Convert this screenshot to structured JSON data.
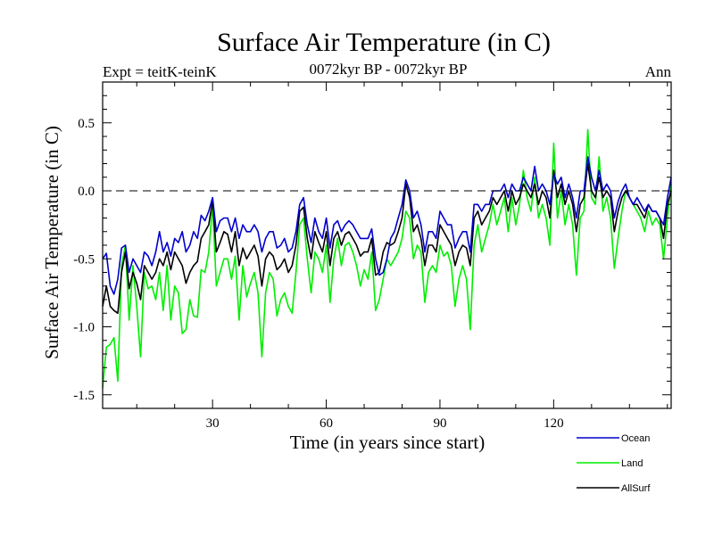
{
  "chart_data": {
    "type": "line",
    "title": "Surface Air Temperature (in C)",
    "expt_label": "Expt = teitK-teinK",
    "period_label": "0072kyr BP - 0072kyr BP",
    "season_label": "Ann",
    "xlabel": "Time (in years since start)",
    "ylabel": "Surface Air Temperature (in C)",
    "xlim": [
      1,
      151
    ],
    "ylim": [
      -1.6,
      0.8
    ],
    "xticks": [
      30,
      60,
      90,
      120
    ],
    "xtick_labels": [
      "30",
      "60",
      "90",
      "120"
    ],
    "yticks": [
      -1.5,
      -1.0,
      -0.5,
      0.0,
      0.5
    ],
    "ytick_labels": [
      "-1.5",
      "-1.0",
      "-0.5",
      "0.0",
      "0.5"
    ],
    "reference_line": 0.0,
    "series": [
      {
        "name": "Land",
        "color": "#00ee00",
        "values": [
          -1.45,
          -1.15,
          -1.13,
          -1.08,
          -1.4,
          -0.55,
          -0.4,
          -0.95,
          -0.55,
          -0.85,
          -1.22,
          -0.6,
          -0.72,
          -0.7,
          -0.8,
          -0.6,
          -0.88,
          -0.55,
          -0.95,
          -0.7,
          -0.75,
          -1.05,
          -1.02,
          -0.8,
          -0.92,
          -0.93,
          -0.58,
          -0.6,
          -0.45,
          -0.1,
          -0.7,
          -0.6,
          -0.5,
          -0.5,
          -0.65,
          -0.48,
          -0.95,
          -0.55,
          -0.78,
          -0.68,
          -0.6,
          -0.75,
          -1.22,
          -0.75,
          -0.6,
          -0.65,
          -0.92,
          -0.8,
          -0.75,
          -0.85,
          -0.9,
          -0.6,
          -0.25,
          -0.2,
          -0.5,
          -0.75,
          -0.45,
          -0.5,
          -0.6,
          -0.4,
          -0.82,
          -0.5,
          -0.35,
          -0.55,
          -0.4,
          -0.38,
          -0.45,
          -0.55,
          -0.7,
          -0.58,
          -0.65,
          -0.45,
          -0.88,
          -0.8,
          -0.65,
          -0.5,
          -0.55,
          -0.5,
          -0.45,
          -0.35,
          -0.15,
          -0.2,
          -0.5,
          -0.4,
          -0.45,
          -0.82,
          -0.6,
          -0.55,
          -0.6,
          -0.4,
          -0.48,
          -0.45,
          -0.55,
          -0.85,
          -0.65,
          -0.55,
          -0.65,
          -1.02,
          -0.4,
          -0.25,
          -0.45,
          -0.35,
          -0.25,
          -0.1,
          -0.25,
          -0.15,
          -0.05,
          -0.3,
          -0.05,
          -0.25,
          -0.1,
          0.15,
          -0.05,
          -0.15,
          0.1,
          -0.2,
          -0.1,
          -0.2,
          -0.4,
          0.35,
          -0.2,
          0.0,
          -0.25,
          -0.1,
          -0.25,
          -0.62,
          -0.2,
          -0.15,
          0.45,
          -0.05,
          -0.1,
          0.25,
          -0.15,
          -0.05,
          -0.2,
          -0.57,
          -0.35,
          -0.15,
          0.0,
          -0.05,
          -0.1,
          -0.15,
          -0.2,
          -0.3,
          -0.15,
          -0.25,
          -0.2,
          -0.25,
          -0.5,
          -0.2,
          0.05
        ]
      },
      {
        "name": "AllSurf",
        "color": "#000000",
        "values": [
          -0.85,
          -0.7,
          -0.85,
          -0.88,
          -0.9,
          -0.6,
          -0.45,
          -0.72,
          -0.6,
          -0.68,
          -0.8,
          -0.55,
          -0.6,
          -0.65,
          -0.6,
          -0.5,
          -0.55,
          -0.45,
          -0.58,
          -0.45,
          -0.5,
          -0.55,
          -0.68,
          -0.6,
          -0.55,
          -0.52,
          -0.35,
          -0.3,
          -0.25,
          -0.07,
          -0.45,
          -0.38,
          -0.3,
          -0.32,
          -0.45,
          -0.3,
          -0.55,
          -0.42,
          -0.5,
          -0.45,
          -0.4,
          -0.48,
          -0.7,
          -0.5,
          -0.45,
          -0.48,
          -0.58,
          -0.55,
          -0.5,
          -0.6,
          -0.55,
          -0.4,
          -0.15,
          -0.12,
          -0.35,
          -0.5,
          -0.3,
          -0.38,
          -0.45,
          -0.3,
          -0.55,
          -0.35,
          -0.3,
          -0.4,
          -0.32,
          -0.3,
          -0.35,
          -0.4,
          -0.48,
          -0.45,
          -0.45,
          -0.35,
          -0.62,
          -0.6,
          -0.45,
          -0.38,
          -0.4,
          -0.38,
          -0.3,
          -0.2,
          0.05,
          -0.05,
          -0.3,
          -0.25,
          -0.35,
          -0.55,
          -0.4,
          -0.4,
          -0.45,
          -0.25,
          -0.3,
          -0.35,
          -0.4,
          -0.55,
          -0.45,
          -0.4,
          -0.42,
          -0.55,
          -0.2,
          -0.15,
          -0.25,
          -0.2,
          -0.15,
          -0.05,
          -0.1,
          -0.05,
          0.0,
          -0.15,
          0.0,
          -0.1,
          -0.05,
          0.05,
          0.0,
          -0.05,
          0.05,
          -0.1,
          0.0,
          -0.05,
          -0.2,
          0.15,
          -0.05,
          0.05,
          -0.1,
          0.0,
          -0.1,
          -0.3,
          -0.1,
          -0.05,
          0.2,
          0.0,
          -0.05,
          0.1,
          -0.05,
          0.0,
          -0.05,
          -0.3,
          -0.15,
          -0.05,
          0.0,
          -0.05,
          -0.1,
          -0.1,
          -0.15,
          -0.2,
          -0.1,
          -0.15,
          -0.15,
          -0.2,
          -0.35,
          -0.1,
          0.0
        ]
      },
      {
        "name": "Ocean",
        "color": "#0000cc",
        "values": [
          -0.5,
          -0.46,
          -0.7,
          -0.76,
          -0.65,
          -0.42,
          -0.4,
          -0.6,
          -0.5,
          -0.55,
          -0.6,
          -0.45,
          -0.48,
          -0.55,
          -0.45,
          -0.3,
          -0.45,
          -0.38,
          -0.48,
          -0.35,
          -0.38,
          -0.3,
          -0.45,
          -0.4,
          -0.3,
          -0.35,
          -0.18,
          -0.22,
          -0.15,
          -0.05,
          -0.3,
          -0.22,
          -0.2,
          -0.2,
          -0.3,
          -0.2,
          -0.35,
          -0.25,
          -0.3,
          -0.3,
          -0.25,
          -0.3,
          -0.45,
          -0.35,
          -0.3,
          -0.3,
          -0.42,
          -0.4,
          -0.35,
          -0.45,
          -0.42,
          -0.3,
          -0.1,
          -0.05,
          -0.25,
          -0.38,
          -0.2,
          -0.3,
          -0.35,
          -0.2,
          -0.42,
          -0.25,
          -0.22,
          -0.3,
          -0.25,
          -0.22,
          -0.25,
          -0.3,
          -0.35,
          -0.35,
          -0.35,
          -0.28,
          -0.5,
          -0.62,
          -0.6,
          -0.5,
          -0.35,
          -0.3,
          -0.2,
          -0.1,
          0.08,
          0.0,
          -0.2,
          -0.15,
          -0.25,
          -0.45,
          -0.3,
          -0.3,
          -0.35,
          -0.15,
          -0.2,
          -0.25,
          -0.25,
          -0.42,
          -0.35,
          -0.3,
          -0.3,
          -0.45,
          -0.1,
          -0.1,
          -0.15,
          -0.1,
          -0.1,
          0.0,
          0.0,
          0.0,
          0.05,
          -0.05,
          0.05,
          0.0,
          0.0,
          0.1,
          0.05,
          0.0,
          0.18,
          0.0,
          0.05,
          0.0,
          -0.1,
          0.12,
          0.05,
          0.1,
          -0.05,
          0.05,
          -0.05,
          -0.2,
          0.0,
          0.0,
          0.25,
          0.1,
          0.0,
          0.15,
          0.0,
          0.05,
          0.0,
          -0.2,
          -0.08,
          0.0,
          0.05,
          -0.05,
          -0.1,
          -0.05,
          -0.1,
          -0.15,
          -0.1,
          -0.15,
          -0.15,
          -0.2,
          -0.25,
          -0.05,
          0.1
        ]
      }
    ],
    "legend": [
      {
        "name": "Ocean",
        "color": "#0000cc"
      },
      {
        "name": "Land",
        "color": "#00ee00"
      },
      {
        "name": "AllSurf",
        "color": "#000000"
      }
    ]
  }
}
